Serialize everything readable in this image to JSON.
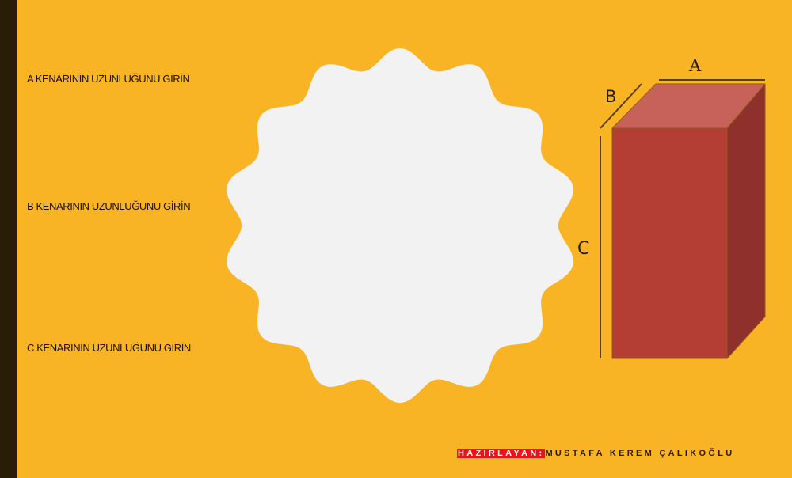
{
  "prompts": {
    "a": "A KENARININ UZUNLUĞUNU GİRİN",
    "b": "B KENARININ UZUNLUĞUNU GİRİN",
    "c": "C KENARININ UZUNLUĞUNU GİRİN"
  },
  "box_labels": {
    "a": "A",
    "b": "B",
    "c": "C"
  },
  "credit": {
    "tag": "HAZIRLAYAN:",
    "name": "MUSTAFA KEREM ÇALIKOĞLU"
  },
  "colors": {
    "background": "#f8b425",
    "left_bar": "#2a1d08",
    "badge": "#f2f2f2",
    "box_front": "#b53e34",
    "box_top": "#c6625a",
    "box_side": "#90302c",
    "edge_lines": "#5a3f0e",
    "credit_tag": "#e8141c"
  }
}
